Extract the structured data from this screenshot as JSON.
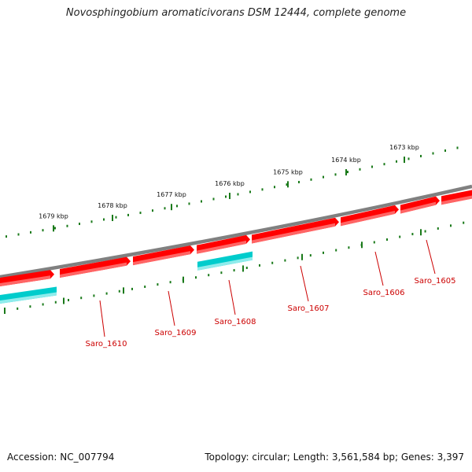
{
  "title": "Novosphingobium aromaticivorans DSM 12444, complete genome",
  "footer": {
    "accession": "Accession: NC_007794",
    "summary": "Topology: circular; Length: 3,561,584 bp; Genes: 3,397"
  },
  "colors": {
    "backbone": "#808080",
    "forward_gene": "#ff0000",
    "forward_gene_shade": "#ff7070",
    "reverse_gene": "#00cccc",
    "reverse_gene_shade": "#9ff0f0",
    "tick": "#1a7a1a",
    "gene_label": "#cc0000"
  },
  "ruler_ticks": [
    {
      "label": "1679 kbp"
    },
    {
      "label": "1678 kbp"
    },
    {
      "label": "1677 kbp"
    },
    {
      "label": "1676 kbp"
    },
    {
      "label": "1675 kbp"
    },
    {
      "label": "1674 kbp"
    },
    {
      "label": "1673 kbp"
    }
  ],
  "genes": [
    {
      "name": "Saro_1610",
      "strand": "+"
    },
    {
      "name": "Saro_1609",
      "strand": "+"
    },
    {
      "name": "Saro_1608",
      "strand": "-"
    },
    {
      "name": "Saro_1607",
      "strand": "+"
    },
    {
      "name": "Saro_1606",
      "strand": "+"
    },
    {
      "name": "Saro_1605",
      "strand": "+"
    }
  ]
}
